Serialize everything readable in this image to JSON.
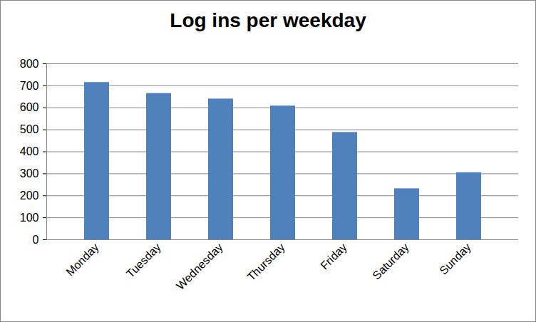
{
  "chart_data": {
    "type": "bar",
    "title": "Log ins per weekday",
    "categories": [
      "Monday",
      "Tuesday",
      "Wednesday",
      "Thursday",
      "Friday",
      "Saturday",
      "Sunday"
    ],
    "values": [
      715,
      665,
      640,
      608,
      488,
      232,
      305
    ],
    "color": "#4f81bd",
    "ylim": [
      0,
      800
    ],
    "yticks": [
      0,
      100,
      200,
      300,
      400,
      500,
      600,
      700,
      800
    ],
    "grid": true
  }
}
